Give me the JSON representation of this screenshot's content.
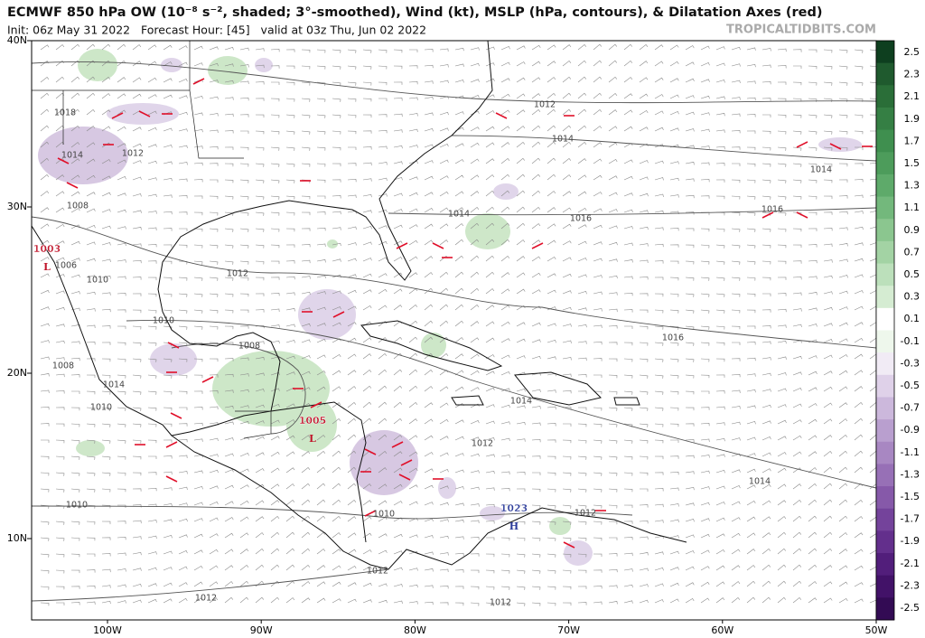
{
  "header": {
    "title": "ECMWF 850 hPa OW (10⁻⁸ s⁻², shaded; 3°-smoothed), Wind (kt), MSLP (hPa, contours), & Dilatation Axes (red)",
    "subtitle": "Init: 06z May 31 2022   Forecast Hour: [45]   valid at 03z Thu, Jun 02 2022",
    "watermark": "TROPICALTIDBITS.COM"
  },
  "map": {
    "lat_labels": [
      "40N",
      "30N",
      "20N",
      "10N"
    ],
    "lon_labels": [
      "100W",
      "90W",
      "80W",
      "70W",
      "60W",
      "50W"
    ],
    "pressure_centers": [
      {
        "value": "1003",
        "symbol": "L"
      },
      {
        "value": "1005",
        "symbol": "L"
      },
      {
        "value": "1023",
        "symbol": "H"
      }
    ],
    "isobar_labels": [
      "1018",
      "1014",
      "1012",
      "1008",
      "1006",
      "1010",
      "1012",
      "1010",
      "1008",
      "1008",
      "1014",
      "1010",
      "1012",
      "1014",
      "1014",
      "1016",
      "1016",
      "1014",
      "1016",
      "1014",
      "1012",
      "1014",
      "1010",
      "1012",
      "1010",
      "1012",
      "1012",
      "1012"
    ]
  },
  "colorbar": {
    "labels": [
      "2.5",
      "2.3",
      "2.1",
      "1.9",
      "1.7",
      "1.5",
      "1.3",
      "1.1",
      "0.9",
      "0.7",
      "0.5",
      "0.3",
      "0.1",
      "-0.1",
      "-0.3",
      "-0.5",
      "-0.7",
      "-0.9",
      "-1.1",
      "-1.3",
      "-1.5",
      "-1.7",
      "-1.9",
      "-2.1",
      "-2.3",
      "-2.5"
    ]
  }
}
